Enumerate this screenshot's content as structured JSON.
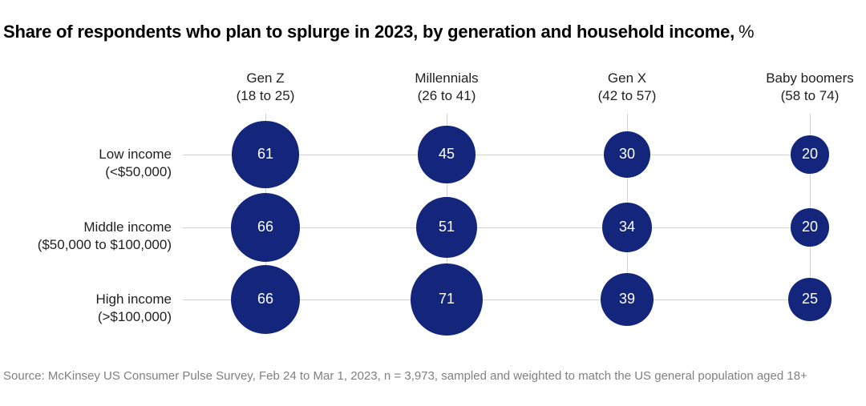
{
  "title": {
    "main": "Share of respondents who plan to splurge in 2023, by generation and household income,",
    "unit": "%"
  },
  "chart_data": {
    "type": "bubble",
    "layout": "matrix",
    "size_encoding": "bubble area proportional to value",
    "unit": "%",
    "columns": [
      {
        "label": "Gen Z",
        "sublabel": "(18 to 25)"
      },
      {
        "label": "Millennials",
        "sublabel": "(26 to 41)"
      },
      {
        "label": "Gen X",
        "sublabel": "(42 to 57)"
      },
      {
        "label": "Baby boomers",
        "sublabel": "(58 to 74)"
      }
    ],
    "rows": [
      {
        "label": "Low income",
        "sublabel": "(<$50,000)"
      },
      {
        "label": "Middle income",
        "sublabel": "($50,000 to $100,000)"
      },
      {
        "label": "High income",
        "sublabel": "(>$100,000)"
      }
    ],
    "values": [
      [
        61,
        45,
        30,
        20
      ],
      [
        66,
        51,
        34,
        20
      ],
      [
        66,
        71,
        39,
        25
      ]
    ],
    "bubble_color": "#14267C",
    "value_text_color": "#ffffff",
    "gridline_color": "#d2d2d2",
    "grid": "row and column guide lines"
  },
  "source": "Source: McKinsey US Consumer Pulse Survey, Feb 24 to Mar 1, 2023, n = 3,973, sampled and weighted to match the US general population aged 18+"
}
